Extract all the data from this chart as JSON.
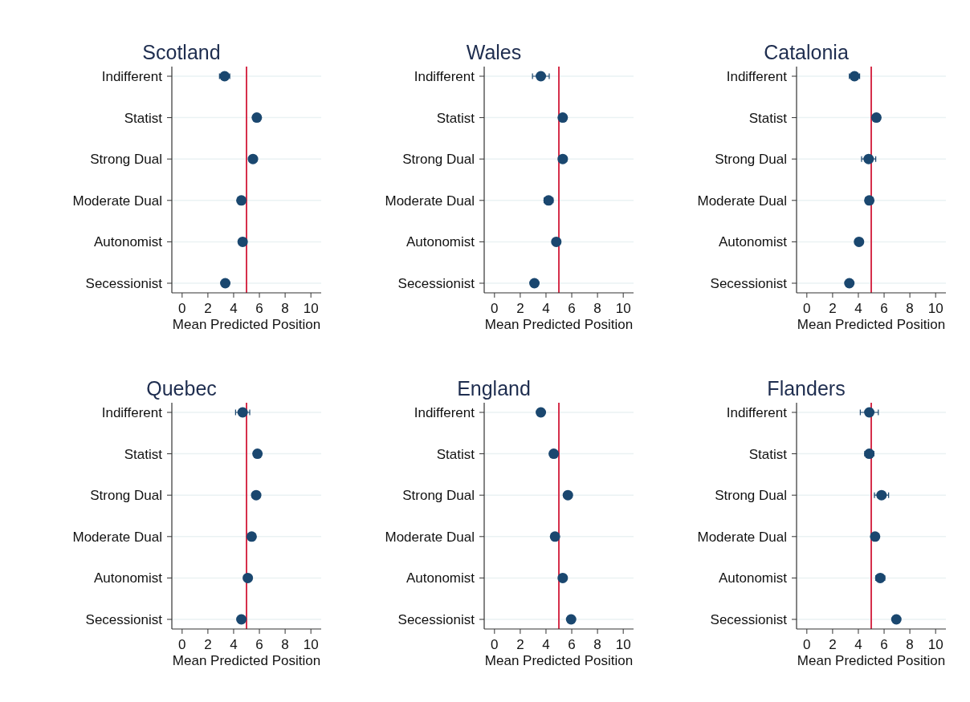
{
  "chart_data": [
    {
      "type": "scatter",
      "orientation": "horizontal",
      "title": "Scotland",
      "xlabel": "Mean Predicted Position",
      "categories": [
        "Indifferent",
        "Statist",
        "Strong Dual",
        "Moderate Dual",
        "Autonomist",
        "Secessionist"
      ],
      "values": [
        3.3,
        5.8,
        5.5,
        4.6,
        4.7,
        3.35
      ],
      "errors": [
        0.4,
        null,
        null,
        null,
        null,
        null
      ],
      "color": "#1a476f",
      "marker": "circle",
      "xlim": [
        -0.8,
        10.8
      ],
      "xticks": [
        0,
        2,
        4,
        6,
        8,
        10
      ],
      "grid": "y",
      "ref_lines": [
        {
          "axis": "x",
          "value": 5,
          "color": "#d62f4b"
        }
      ]
    },
    {
      "type": "scatter",
      "orientation": "horizontal",
      "title": "Wales",
      "xlabel": "Mean Predicted Position",
      "categories": [
        "Indifferent",
        "Statist",
        "Strong Dual",
        "Moderate Dual",
        "Autonomist",
        "Secessionist"
      ],
      "values": [
        3.6,
        5.3,
        5.3,
        4.2,
        4.8,
        3.1
      ],
      "errors": [
        0.65,
        null,
        0.3,
        0.35,
        null,
        null
      ],
      "color": "#1a476f",
      "marker": "circle",
      "xlim": [
        -0.8,
        10.8
      ],
      "xticks": [
        0,
        2,
        4,
        6,
        8,
        10
      ],
      "grid": "y",
      "ref_lines": [
        {
          "axis": "x",
          "value": 5,
          "color": "#d62f4b"
        }
      ]
    },
    {
      "type": "scatter",
      "orientation": "horizontal",
      "title": "Catalonia",
      "xlabel": "Mean Predicted Position",
      "categories": [
        "Indifferent",
        "Statist",
        "Strong Dual",
        "Moderate Dual",
        "Autonomist",
        "Secessionist"
      ],
      "values": [
        3.7,
        5.4,
        4.8,
        4.85,
        4.05,
        3.3
      ],
      "errors": [
        0.4,
        0.3,
        0.55,
        0.3,
        null,
        null
      ],
      "color": "#1a476f",
      "marker": "circle",
      "xlim": [
        -0.8,
        10.8
      ],
      "xticks": [
        0,
        2,
        4,
        6,
        8,
        10
      ],
      "grid": "y",
      "ref_lines": [
        {
          "axis": "x",
          "value": 5,
          "color": "#d62f4b"
        }
      ]
    },
    {
      "type": "scatter",
      "orientation": "horizontal",
      "title": "Quebec",
      "xlabel": "Mean Predicted Position",
      "categories": [
        "Indifferent",
        "Statist",
        "Strong Dual",
        "Moderate Dual",
        "Autonomist",
        "Secessionist"
      ],
      "values": [
        4.7,
        5.85,
        5.75,
        5.4,
        5.1,
        4.6
      ],
      "errors": [
        0.55,
        null,
        null,
        null,
        null,
        null
      ],
      "color": "#1a476f",
      "marker": "circle",
      "xlim": [
        -0.8,
        10.8
      ],
      "xticks": [
        0,
        2,
        4,
        6,
        8,
        10
      ],
      "grid": "y",
      "ref_lines": [
        {
          "axis": "x",
          "value": 5,
          "color": "#d62f4b"
        }
      ]
    },
    {
      "type": "scatter",
      "orientation": "horizontal",
      "title": "England",
      "xlabel": "Mean Predicted Position",
      "categories": [
        "Indifferent",
        "Statist",
        "Strong Dual",
        "Moderate Dual",
        "Autonomist",
        "Secessionist"
      ],
      "values": [
        3.6,
        4.6,
        5.7,
        4.7,
        5.3,
        5.95
      ],
      "errors": [
        null,
        null,
        null,
        null,
        null,
        null
      ],
      "color": "#1a476f",
      "marker": "circle",
      "xlim": [
        -0.8,
        10.8
      ],
      "xticks": [
        0,
        2,
        4,
        6,
        8,
        10
      ],
      "grid": "y",
      "ref_lines": [
        {
          "axis": "x",
          "value": 5,
          "color": "#d62f4b"
        }
      ]
    },
    {
      "type": "scatter",
      "orientation": "horizontal",
      "title": "Flanders",
      "xlabel": "Mean Predicted Position",
      "categories": [
        "Indifferent",
        "Statist",
        "Strong Dual",
        "Moderate Dual",
        "Autonomist",
        "Secessionist"
      ],
      "values": [
        4.85,
        4.85,
        5.8,
        5.3,
        5.7,
        6.95
      ],
      "errors": [
        0.7,
        0.35,
        0.55,
        null,
        0.35,
        null
      ],
      "color": "#1a476f",
      "marker": "circle",
      "xlim": [
        -0.8,
        10.8
      ],
      "xticks": [
        0,
        2,
        4,
        6,
        8,
        10
      ],
      "grid": "y",
      "ref_lines": [
        {
          "axis": "x",
          "value": 5,
          "color": "#d62f4b"
        }
      ]
    }
  ]
}
